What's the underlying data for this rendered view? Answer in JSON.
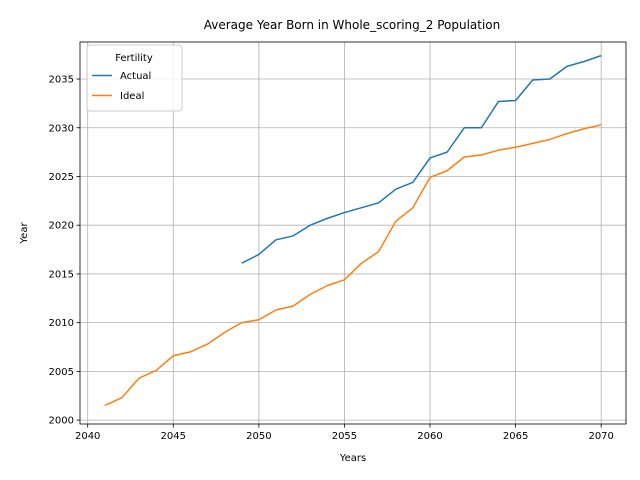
{
  "chart_data": {
    "type": "line",
    "title": "Average Year Born in Whole_scoring_2 Population",
    "xlabel": "Years",
    "ylabel": "Year",
    "xlim": [
      2039.55,
      2071.45
    ],
    "ylim": [
      1999.6,
      2038.8
    ],
    "xticks": [
      2040,
      2045,
      2050,
      2055,
      2060,
      2065,
      2070
    ],
    "yticks": [
      2000,
      2005,
      2010,
      2015,
      2020,
      2025,
      2030,
      2035
    ],
    "grid": true,
    "legend": {
      "title": "Fertility",
      "placement": "top-left"
    },
    "series": [
      {
        "name": "Actual",
        "color": "#1f77b4",
        "x": [
          2049,
          2050,
          2051,
          2052,
          2053,
          2054,
          2055,
          2056,
          2057,
          2058,
          2059,
          2060,
          2061,
          2062,
          2063,
          2064,
          2065,
          2066,
          2067,
          2068,
          2069,
          2070
        ],
        "y": [
          2016.1,
          2017.0,
          2018.5,
          2018.9,
          2020.0,
          2020.7,
          2021.3,
          2021.8,
          2022.3,
          2023.7,
          2024.4,
          2026.9,
          2027.5,
          2030.0,
          2030.0,
          2032.7,
          2032.8,
          2034.9,
          2035.0,
          2036.3,
          2036.8,
          2037.4
        ]
      },
      {
        "name": "Ideal",
        "color": "#ff7f0e",
        "x": [
          2041,
          2042,
          2043,
          2044,
          2045,
          2046,
          2047,
          2048,
          2049,
          2050,
          2051,
          2052,
          2053,
          2054,
          2055,
          2056,
          2057,
          2058,
          2059,
          2060,
          2061,
          2062,
          2063,
          2064,
          2065,
          2066,
          2067,
          2068,
          2069,
          2070
        ],
        "y": [
          2001.5,
          2002.3,
          2004.3,
          2005.1,
          2006.6,
          2007.0,
          2007.8,
          2009.0,
          2010.0,
          2010.3,
          2011.3,
          2011.7,
          2012.9,
          2013.8,
          2014.4,
          2016.1,
          2017.3,
          2020.4,
          2021.8,
          2024.9,
          2025.6,
          2027.0,
          2027.2,
          2027.7,
          2028.0,
          2028.4,
          2028.8,
          2029.4,
          2029.9,
          2030.3
        ]
      }
    ]
  }
}
